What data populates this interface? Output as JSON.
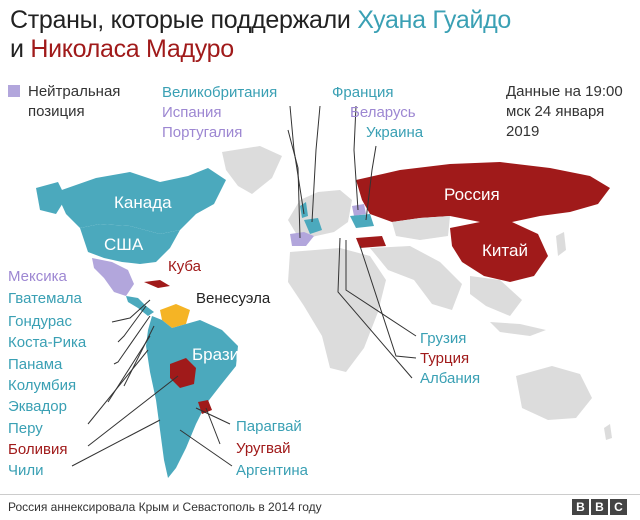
{
  "title": {
    "line1_prefix": "Страны, которые поддержали ",
    "line1_name": "Хуана Гуайдо",
    "line2_prefix": "и ",
    "line2_name": "Николаса Мадуро"
  },
  "legend": {
    "label": "Нейтральная позиция",
    "color": "#b2a6dc"
  },
  "source": {
    "text": "Данные на 19:00 мск 24 января 2019"
  },
  "colors": {
    "support": "#4ba9bd",
    "maduro": "#a01a1a",
    "neutral": "#b2a6dc",
    "venezuela": "#f5b425",
    "other": "#dcdcdc",
    "ocean": "#ffffff"
  },
  "labels": {
    "uk": "Великобритания",
    "france": "Франция",
    "spain": "Испания",
    "belarus": "Беларусь",
    "portugal": "Португалия",
    "ukraine": "Украина",
    "canada": "Канада",
    "usa": "США",
    "russia": "Россия",
    "china": "Китай",
    "cuba": "Куба",
    "mexico": "Мексика",
    "guatemala": "Гватемала",
    "venezuela": "Венесуэла",
    "honduras": "Гондурас",
    "costa_rica": "Коста-Рика",
    "panama": "Панама",
    "brazil": "Бразилия",
    "colombia": "Колумбия",
    "ecuador": "Эквадор",
    "peru": "Перу",
    "bolivia": "Боливия",
    "chile": "Чили",
    "paraguay": "Парагвай",
    "uruguay": "Уругвай",
    "argentina": "Аргентина",
    "georgia": "Грузия",
    "turkey": "Турция",
    "albania": "Албания"
  },
  "footer": {
    "note": "Россия аннексировала Крым и Севастополь в 2014 году",
    "logo": [
      "B",
      "B",
      "C"
    ]
  }
}
